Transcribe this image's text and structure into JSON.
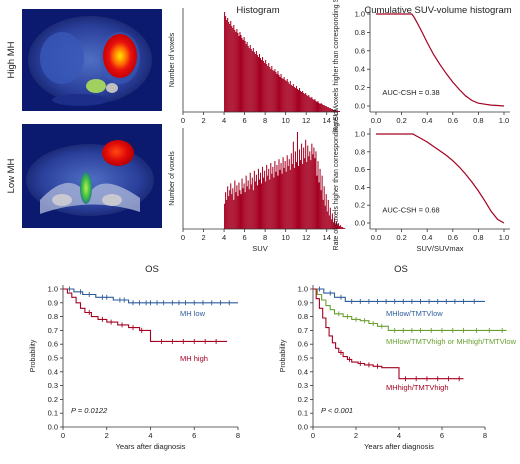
{
  "rows": [
    {
      "label": "High MH"
    },
    {
      "label": "Low MH"
    }
  ],
  "chart_data": [
    {
      "id": "hist-high",
      "type": "bar",
      "title": "Histogram",
      "xlabel": "",
      "ylabel": "Number of voxels",
      "xlim": [
        0,
        15
      ],
      "xticks": [
        "0",
        "2",
        "4",
        "6",
        "8",
        "10",
        "12",
        "14"
      ],
      "color": "#a50021",
      "bin_start": 4.0,
      "bin_width": 0.1,
      "values": [
        100,
        96,
        92,
        94,
        90,
        88,
        91,
        86,
        84,
        87,
        82,
        80,
        83,
        79,
        76,
        80,
        77,
        74,
        72,
        75,
        71,
        68,
        70,
        66,
        64,
        67,
        63,
        61,
        64,
        60,
        58,
        61,
        57,
        55,
        58,
        54,
        52,
        55,
        51,
        49,
        52,
        48,
        46,
        49,
        45,
        43,
        46,
        42,
        41,
        43,
        40,
        38,
        41,
        37,
        35,
        38,
        34,
        33,
        35,
        32,
        31,
        33,
        30,
        28,
        31,
        27,
        26,
        28,
        25,
        24,
        26,
        23,
        22,
        24,
        21,
        20,
        21,
        19,
        18,
        19,
        17,
        16,
        17,
        15,
        14,
        15,
        13,
        12,
        13,
        11,
        10,
        11,
        9,
        8,
        9,
        8,
        7,
        7,
        6,
        6,
        5,
        5,
        4,
        4,
        3,
        3,
        2,
        2,
        2,
        1,
        1,
        1,
        1,
        0
      ]
    },
    {
      "id": "hist-low",
      "type": "bar",
      "title": "",
      "xlabel": "SUV",
      "ylabel": "Number of voxels",
      "xlim": [
        0,
        15
      ],
      "xticks": [
        "0",
        "2",
        "4",
        "6",
        "8",
        "10",
        "12",
        "14"
      ],
      "color": "#a50021",
      "bin_start": 4.0,
      "bin_width": 0.1,
      "values": [
        26,
        38,
        30,
        44,
        34,
        40,
        47,
        36,
        42,
        30,
        50,
        38,
        45,
        34,
        48,
        40,
        36,
        52,
        42,
        47,
        38,
        55,
        44,
        50,
        41,
        58,
        46,
        53,
        40,
        60,
        49,
        56,
        45,
        62,
        51,
        58,
        47,
        64,
        53,
        60,
        49,
        66,
        55,
        62,
        51,
        68,
        57,
        64,
        53,
        70,
        59,
        66,
        55,
        72,
        61,
        68,
        57,
        74,
        63,
        70,
        59,
        76,
        65,
        72,
        61,
        78,
        67,
        90,
        63,
        80,
        69,
        100,
        65,
        82,
        71,
        88,
        67,
        84,
        73,
        92,
        69,
        86,
        75,
        80,
        71,
        88,
        77,
        84,
        73,
        80,
        55,
        70,
        48,
        62,
        40,
        55,
        30,
        44,
        24,
        36,
        18,
        30,
        14,
        22,
        10,
        16,
        7,
        11,
        5,
        8,
        4,
        6,
        3,
        4,
        2,
        2,
        1,
        1
      ]
    },
    {
      "id": "csh-high",
      "type": "line",
      "title": "Cumulative SUV-volume histogram",
      "xlabel": "",
      "ylabel": "Rate of voxels higher than corresponding SUV",
      "xlim": [
        0,
        1
      ],
      "ylim": [
        0,
        1
      ],
      "xticks": [
        "0.0",
        "0.2",
        "0.4",
        "0.6",
        "0.8",
        "1.0"
      ],
      "yticks": [
        "0.0",
        "0.2",
        "0.4",
        "0.6",
        "0.8",
        "1.0"
      ],
      "annotation": "AUC-CSH = 0.38",
      "color": "#a50021",
      "x": [
        0.0,
        0.28,
        0.3,
        0.35,
        0.4,
        0.45,
        0.5,
        0.55,
        0.6,
        0.65,
        0.7,
        0.75,
        0.8,
        0.85,
        0.9,
        0.95,
        1.0
      ],
      "y": [
        1.0,
        1.0,
        0.96,
        0.83,
        0.69,
        0.56,
        0.45,
        0.35,
        0.26,
        0.18,
        0.11,
        0.06,
        0.03,
        0.02,
        0.01,
        0.005,
        0.0
      ]
    },
    {
      "id": "csh-low",
      "type": "line",
      "title": "",
      "xlabel": "SUV/SUVmax",
      "ylabel": "Rate of voxels higher than corresponding SUV",
      "xlim": [
        0,
        1
      ],
      "ylim": [
        0,
        1
      ],
      "xticks": [
        "0.0",
        "0.2",
        "0.4",
        "0.6",
        "0.8",
        "1.0"
      ],
      "yticks": [
        "0.0",
        "0.2",
        "0.4",
        "0.6",
        "0.8",
        "1.0"
      ],
      "annotation": "AUC-CSH = 0.68",
      "color": "#a50021",
      "x": [
        0.0,
        0.29,
        0.3,
        0.35,
        0.4,
        0.45,
        0.5,
        0.55,
        0.6,
        0.65,
        0.7,
        0.75,
        0.8,
        0.85,
        0.9,
        0.95,
        1.0
      ],
      "y": [
        1.0,
        1.0,
        0.99,
        0.95,
        0.91,
        0.86,
        0.81,
        0.76,
        0.7,
        0.63,
        0.55,
        0.46,
        0.36,
        0.25,
        0.13,
        0.04,
        0.0
      ]
    },
    {
      "id": "km-mh",
      "type": "line",
      "title": "OS",
      "xlabel": "Years after diagnosis",
      "ylabel": "Probability",
      "xlim": [
        0,
        8
      ],
      "ylim": [
        0,
        1
      ],
      "xticks": [
        "0",
        "2",
        "4",
        "6",
        "8"
      ],
      "yticks": [
        "0.0",
        "0.1",
        "0.2",
        "0.3",
        "0.4",
        "0.5",
        "0.6",
        "0.7",
        "0.8",
        "0.9",
        "1.0"
      ],
      "annotation": "P = 0.0122",
      "series": [
        {
          "name": "MH low",
          "color": "#2e5d9b",
          "x": [
            0,
            0.5,
            0.9,
            1.5,
            2.3,
            3.0,
            8.0
          ],
          "y": [
            1.0,
            0.98,
            0.96,
            0.94,
            0.92,
            0.9,
            0.9
          ],
          "censor_x": [
            0.3,
            0.8,
            1.2,
            1.8,
            2.0,
            2.6,
            2.8,
            3.2,
            3.5,
            3.8,
            4.0,
            4.3,
            4.6,
            5.0,
            5.3,
            5.6,
            6.0,
            6.4,
            6.8,
            7.2,
            7.6
          ]
        },
        {
          "name": "MH high",
          "color": "#a50021",
          "x": [
            0,
            0.2,
            0.4,
            0.6,
            0.8,
            1.0,
            1.3,
            1.6,
            2.0,
            2.5,
            3.0,
            3.5,
            4.0,
            7.5
          ],
          "y": [
            1.0,
            0.97,
            0.94,
            0.9,
            0.86,
            0.83,
            0.8,
            0.78,
            0.76,
            0.74,
            0.72,
            0.7,
            0.62,
            0.62
          ],
          "censor_x": [
            1.2,
            1.8,
            2.2,
            2.7,
            3.2,
            3.6,
            4.5,
            5.0,
            5.5,
            6.0,
            6.5,
            7.0
          ]
        }
      ]
    },
    {
      "id": "km-mh-tmtv",
      "type": "line",
      "title": "OS",
      "xlabel": "Years after diagnosis",
      "ylabel": "Probability",
      "xlim": [
        0,
        8
      ],
      "ylim": [
        0,
        1
      ],
      "xticks": [
        "0",
        "2",
        "4",
        "6",
        "8"
      ],
      "yticks": [
        "0.0",
        "0.1",
        "0.2",
        "0.3",
        "0.4",
        "0.5",
        "0.6",
        "0.7",
        "0.8",
        "0.9",
        "1.0"
      ],
      "annotation": "P < 0.001",
      "series": [
        {
          "name": "MHlow/TMTVlow",
          "color": "#2e5d9b",
          "x": [
            0,
            0.5,
            1.0,
            1.5,
            8.0
          ],
          "y": [
            1.0,
            0.97,
            0.94,
            0.91,
            0.91
          ],
          "censor_x": [
            0.3,
            0.8,
            1.3,
            1.8,
            2.2,
            2.6,
            3.0,
            3.4,
            3.8,
            4.2,
            4.6,
            5.0,
            5.4,
            5.8,
            6.2,
            6.6,
            7.0,
            7.5
          ]
        },
        {
          "name": "MHlow/TMTVhigh or MHhigh/TMTVlow",
          "color": "#6aa033",
          "x": [
            0,
            0.2,
            0.4,
            0.6,
            0.8,
            1.0,
            1.4,
            1.8,
            2.2,
            2.6,
            3.0,
            3.5,
            9.0
          ],
          "y": [
            1.0,
            0.96,
            0.92,
            0.88,
            0.85,
            0.82,
            0.8,
            0.78,
            0.77,
            0.75,
            0.73,
            0.7,
            0.7
          ],
          "censor_x": [
            1.2,
            1.6,
            2.0,
            2.4,
            2.8,
            3.2,
            3.8,
            4.2,
            4.6,
            5.0,
            5.5,
            6.0,
            6.5,
            7.0,
            7.6,
            8.2,
            8.8
          ]
        },
        {
          "name": "MHhigh/TMTVhigh",
          "color": "#a50021",
          "x": [
            0,
            0.15,
            0.3,
            0.45,
            0.6,
            0.75,
            0.9,
            1.05,
            1.2,
            1.4,
            1.6,
            1.8,
            2.1,
            2.4,
            2.8,
            3.2,
            4.0,
            7.0
          ],
          "y": [
            1.0,
            0.93,
            0.86,
            0.79,
            0.72,
            0.66,
            0.61,
            0.57,
            0.54,
            0.51,
            0.49,
            0.47,
            0.46,
            0.45,
            0.44,
            0.43,
            0.35,
            0.35
          ],
          "censor_x": [
            1.3,
            1.7,
            2.2,
            2.6,
            3.0,
            4.3,
            4.8,
            5.3,
            5.8,
            6.3,
            6.8
          ]
        }
      ]
    }
  ]
}
